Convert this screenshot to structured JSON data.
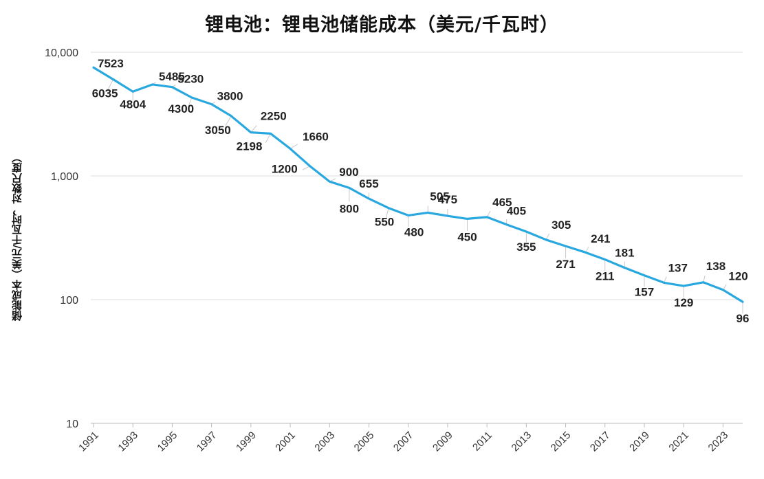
{
  "chart_data": {
    "type": "line",
    "title": "锂电池：锂电池储能成本（美元/千瓦时）",
    "ylabel": "储能成本（美元/千瓦时，对数尺度）",
    "xlabel": "",
    "y_scale": "log",
    "ylim": [
      10,
      10000
    ],
    "y_ticks": [
      "10",
      "100",
      "1,000",
      "10,000"
    ],
    "x_tick_labels": [
      "1991",
      "1993",
      "1995",
      "1997",
      "1999",
      "2001",
      "2003",
      "2005",
      "2007",
      "2009",
      "2011",
      "2013",
      "2015",
      "2017",
      "2019",
      "2021",
      "2023"
    ],
    "grid": "horizontal",
    "line_color": "#29a8e0",
    "x": [
      1991,
      1992,
      1993,
      1994,
      1995,
      1996,
      1997,
      1998,
      1999,
      2000,
      2001,
      2002,
      2003,
      2004,
      2005,
      2006,
      2007,
      2008,
      2009,
      2010,
      2011,
      2012,
      2013,
      2014,
      2015,
      2016,
      2017,
      2018,
      2019,
      2020,
      2021,
      2022,
      2023,
      2024
    ],
    "values": [
      7523,
      6035,
      4804,
      5485,
      5230,
      4300,
      3800,
      3050,
      2250,
      2198,
      1660,
      1200,
      900,
      800,
      655,
      550,
      480,
      505,
      475,
      450,
      465,
      405,
      355,
      305,
      271,
      241,
      211,
      181,
      157,
      137,
      129,
      138,
      120,
      96
    ]
  }
}
